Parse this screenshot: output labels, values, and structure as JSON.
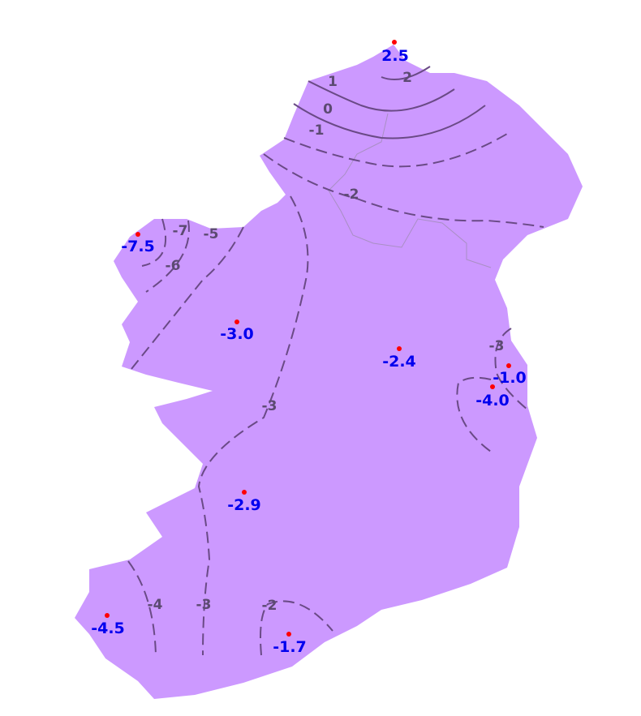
{
  "colors": {
    "land": "#cc99ff",
    "isoline": "#6a4a86",
    "station_dot": "#ff0000",
    "station_value": "#0000ee"
  },
  "isolines": [
    {
      "level": "2",
      "label": "2"
    },
    {
      "level": "1",
      "label": "1"
    },
    {
      "level": "0",
      "label": "0"
    },
    {
      "level": "-1",
      "label": "-1"
    },
    {
      "level": "-2",
      "label": "-2"
    },
    {
      "level": "-2",
      "label": "-2"
    },
    {
      "level": "-3",
      "label": "-3"
    },
    {
      "level": "-3",
      "label": "-3"
    },
    {
      "level": "-3",
      "label": "-3"
    },
    {
      "level": "-4",
      "label": "-4"
    },
    {
      "level": "-5",
      "label": "-5"
    },
    {
      "level": "-6",
      "label": "-6"
    },
    {
      "level": "-7",
      "label": "-7"
    }
  ],
  "stations": [
    {
      "value": "2.5"
    },
    {
      "value": "-7.5"
    },
    {
      "value": "-3.0"
    },
    {
      "value": "-2.4"
    },
    {
      "value": "-1.0"
    },
    {
      "value": "-4.0"
    },
    {
      "value": "-2.9"
    },
    {
      "value": "-4.5"
    },
    {
      "value": "-1.7"
    }
  ]
}
